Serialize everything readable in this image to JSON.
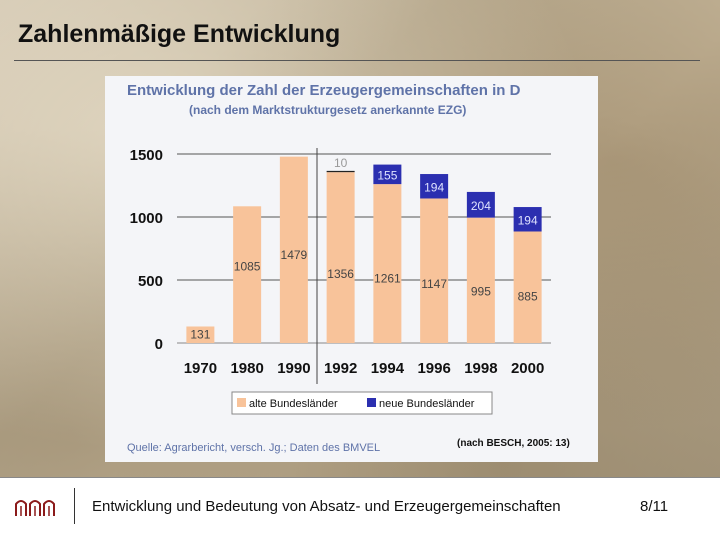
{
  "slide": {
    "title": "Zahlenmäßige Entwicklung",
    "footer_text": "Entwicklung und Bedeutung von Absatz- und Erzeugergemeinschaften",
    "page": "8/11"
  },
  "chart_data": {
    "type": "bar",
    "stacked": true,
    "title": "Entwicklung der Zahl der Erzeugergemeinschaften in D",
    "subtitle": "(nach dem Marktstrukturgesetz anerkannte EZG)",
    "categories": [
      "1970",
      "1980",
      "1990",
      "1992",
      "1994",
      "1996",
      "1998",
      "2000"
    ],
    "series": [
      {
        "name": "alte Bundesländer",
        "color": "#f8c39a",
        "values": [
          131,
          1085,
          1479,
          1356,
          1261,
          1147,
          995,
          885
        ]
      },
      {
        "name": "neue Bundesländer",
        "color": "#2b2fb0",
        "values": [
          0,
          0,
          0,
          10,
          155,
          194,
          204,
          194
        ]
      }
    ],
    "ylim": [
      0,
      1500
    ],
    "yticks": [
      0,
      500,
      1000,
      1500
    ],
    "legend": "bottom",
    "source": "Quelle: Agrarbericht, versch. Jg.; Daten des BMVEL",
    "citation": "(nach BESCH, 2005: 13)"
  }
}
